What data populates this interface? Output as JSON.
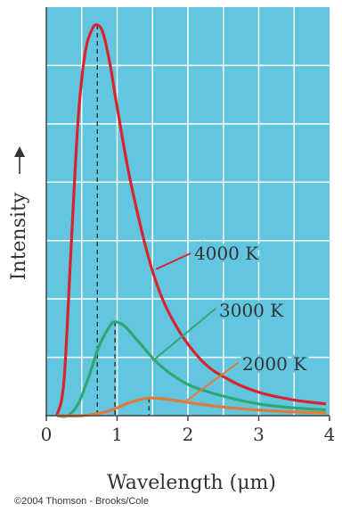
{
  "chart_data": {
    "type": "line",
    "xlabel": "Wavelength (μm)",
    "ylabel": "Intensity",
    "xlim": [
      0,
      4
    ],
    "x_ticks": [
      "0",
      "1",
      "2",
      "3",
      "4"
    ],
    "grid": true,
    "y_tick_labels": false,
    "plot_background": "#62c6e0",
    "grid_color": "#ffffff",
    "series": [
      {
        "name": "4000 K",
        "color": "#d9232e",
        "peak_x": 0.72,
        "peak_y": 1.0,
        "x": [
          0.15,
          0.25,
          0.35,
          0.45,
          0.55,
          0.65,
          0.72,
          0.8,
          0.9,
          1.0,
          1.2,
          1.5,
          1.8,
          2.2,
          2.6,
          3.0,
          3.5,
          3.95
        ],
        "y": [
          0.0,
          0.09,
          0.43,
          0.76,
          0.93,
          0.99,
          1.0,
          0.98,
          0.9,
          0.79,
          0.59,
          0.37,
          0.24,
          0.14,
          0.09,
          0.06,
          0.04,
          0.03
        ]
      },
      {
        "name": "3000 K",
        "color": "#2fa874",
        "peak_x": 0.97,
        "peak_y": 0.24,
        "x": [
          0.15,
          0.3,
          0.45,
          0.6,
          0.75,
          0.9,
          0.97,
          1.1,
          1.3,
          1.6,
          2.0,
          2.5,
          3.0,
          3.5,
          3.95
        ],
        "y": [
          0.0,
          0.0,
          0.03,
          0.1,
          0.18,
          0.23,
          0.24,
          0.23,
          0.19,
          0.13,
          0.08,
          0.05,
          0.03,
          0.02,
          0.015
        ]
      },
      {
        "name": "2000 K",
        "color": "#e07b39",
        "peak_x": 1.45,
        "peak_y": 0.045,
        "x": [
          0.15,
          0.5,
          0.8,
          1.0,
          1.2,
          1.45,
          1.7,
          2.0,
          2.4,
          2.8,
          3.2,
          3.6,
          3.95
        ],
        "y": [
          0.0,
          0.0,
          0.008,
          0.02,
          0.035,
          0.045,
          0.042,
          0.034,
          0.024,
          0.017,
          0.012,
          0.009,
          0.007
        ]
      }
    ]
  },
  "copyright": "©2004 Thomson - Brooks/Cole"
}
